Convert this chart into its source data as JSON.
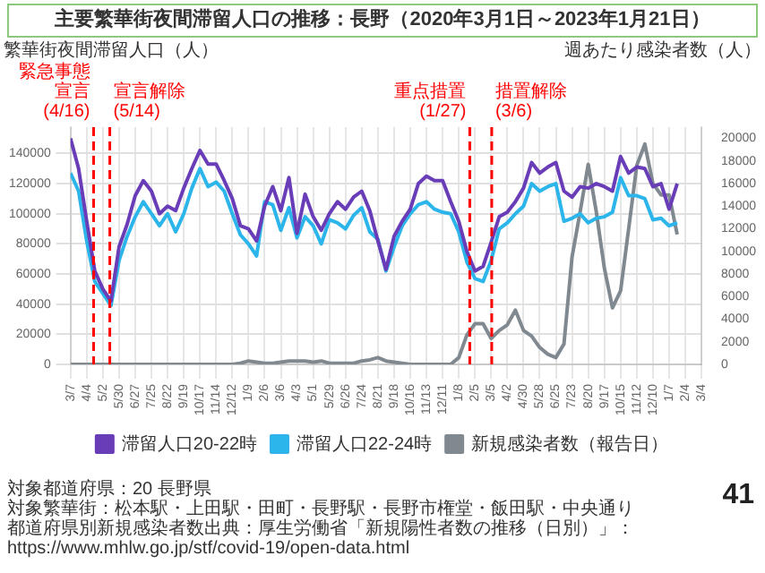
{
  "chart_data": {
    "type": "line",
    "title": "主要繁華街夜間滞留人口の推移：長野（2020年3月1日～2023年1月21日）",
    "ylabel": "繁華街夜間滞留人口（人）",
    "y2label": "週あたり感染者数（人）",
    "x": [
      "2020-03-07",
      "2020-03-21",
      "2020-04-04",
      "2020-04-18",
      "2020-05-02",
      "2020-05-16",
      "2020-05-30",
      "2020-06-13",
      "2020-06-27",
      "2020-07-11",
      "2020-07-25",
      "2020-08-08",
      "2020-08-22",
      "2020-09-05",
      "2020-09-19",
      "2020-10-03",
      "2020-10-17",
      "2020-10-31",
      "2020-11-14",
      "2020-11-28",
      "2020-12-12",
      "2020-12-26",
      "2021-01-09",
      "2021-01-23",
      "2021-02-06",
      "2021-02-20",
      "2021-03-06",
      "2021-03-20",
      "2021-04-03",
      "2021-04-17",
      "2021-05-01",
      "2021-05-15",
      "2021-05-29",
      "2021-06-12",
      "2021-06-26",
      "2021-07-10",
      "2021-07-24",
      "2021-08-07",
      "2021-08-21",
      "2021-09-04",
      "2021-09-18",
      "2021-10-02",
      "2021-10-16",
      "2021-10-30",
      "2021-11-13",
      "2021-11-27",
      "2021-12-11",
      "2021-12-25",
      "2022-01-08",
      "2022-01-22",
      "2022-02-05",
      "2022-02-19",
      "2022-03-05",
      "2022-03-19",
      "2022-04-02",
      "2022-04-16",
      "2022-04-30",
      "2022-05-14",
      "2022-05-28",
      "2022-06-11",
      "2022-06-25",
      "2022-07-09",
      "2022-07-23",
      "2022-08-06",
      "2022-08-20",
      "2022-09-03",
      "2022-09-17",
      "2022-10-01",
      "2022-10-15",
      "2022-10-29",
      "2022-11-12",
      "2022-11-26",
      "2022-12-10",
      "2022-12-24",
      "2023-01-07",
      "2023-01-21"
    ],
    "series": [
      {
        "name": "滞留人口20-22時",
        "color": "#6a3db8",
        "values": [
          150000,
          130000,
          95000,
          62000,
          50000,
          42000,
          78000,
          93000,
          112000,
          122000,
          115000,
          100000,
          105000,
          102000,
          117000,
          130000,
          142000,
          133000,
          133000,
          122000,
          110000,
          92000,
          90000,
          82000,
          105000,
          118000,
          102000,
          124000,
          87000,
          113000,
          98000,
          89000,
          100000,
          108000,
          103000,
          111000,
          115000,
          102000,
          82000,
          63000,
          85000,
          95000,
          103000,
          120000,
          125000,
          122000,
          122000,
          108000,
          95000,
          75000,
          62000,
          65000,
          81000,
          98000,
          101000,
          108000,
          117000,
          134000,
          127000,
          131000,
          134000,
          115000,
          111000,
          118000,
          117000,
          120000,
          118000,
          115000,
          138000,
          127000,
          131000,
          130000,
          118000,
          120000,
          103000,
          120000
        ]
      },
      {
        "name": "滞留人口22-24時",
        "color": "#2bb5ea",
        "values": [
          127000,
          115000,
          82000,
          55000,
          47000,
          39000,
          69000,
          85000,
          98000,
          108000,
          100000,
          92000,
          100000,
          88000,
          100000,
          117000,
          130000,
          118000,
          121000,
          115000,
          100000,
          86000,
          80000,
          72000,
          108000,
          106000,
          89000,
          104000,
          84000,
          98000,
          92000,
          80000,
          96000,
          94000,
          90000,
          99000,
          104000,
          88000,
          83000,
          62000,
          78000,
          92000,
          100000,
          106000,
          108000,
          103000,
          101000,
          100000,
          88000,
          68000,
          57000,
          55000,
          69000,
          90000,
          94000,
          100000,
          105000,
          120000,
          115000,
          118000,
          120000,
          95000,
          97000,
          100000,
          94000,
          97000,
          98000,
          101000,
          124000,
          112000,
          112000,
          110000,
          96000,
          97000,
          92000,
          94000
        ]
      },
      {
        "name": "新規感染者数（報告日）",
        "color": "#808890",
        "axis": "y2",
        "values": [
          0,
          0,
          0,
          0,
          0,
          0,
          0,
          0,
          0,
          0,
          0,
          0,
          0,
          0,
          0,
          0,
          0,
          0,
          0,
          0,
          0,
          100,
          300,
          200,
          100,
          100,
          200,
          300,
          300,
          300,
          200,
          300,
          100,
          100,
          100,
          100,
          300,
          400,
          600,
          300,
          200,
          100,
          0,
          0,
          0,
          0,
          0,
          0,
          600,
          2600,
          3600,
          3600,
          2300,
          3000,
          3500,
          4800,
          3000,
          2500,
          1500,
          900,
          600,
          1800,
          9500,
          13500,
          17700,
          13500,
          8500,
          5000,
          6500,
          12000,
          17600,
          19500,
          16000,
          15000,
          15000,
          11500
        ]
      }
    ],
    "xlim": [
      "2020-03-07",
      "2023-03-04"
    ],
    "xticks": [
      {
        "value": "2020-03-07",
        "label": "3/7"
      },
      {
        "value": "2020-04-04",
        "label": "4/4"
      },
      {
        "value": "2020-05-02",
        "label": "5/2"
      },
      {
        "value": "2020-05-30",
        "label": "5/30"
      },
      {
        "value": "2020-06-27",
        "label": "6/27"
      },
      {
        "value": "2020-07-25",
        "label": "7/25"
      },
      {
        "value": "2020-08-22",
        "label": "8/22"
      },
      {
        "value": "2020-09-19",
        "label": "9/19"
      },
      {
        "value": "2020-10-17",
        "label": "10/17"
      },
      {
        "value": "2020-11-14",
        "label": "11/14"
      },
      {
        "value": "2020-12-12",
        "label": "12/12"
      },
      {
        "value": "2021-01-09",
        "label": "1/9"
      },
      {
        "value": "2021-02-06",
        "label": "2/6"
      },
      {
        "value": "2021-03-06",
        "label": "3/6"
      },
      {
        "value": "2021-04-03",
        "label": "4/3"
      },
      {
        "value": "2021-05-01",
        "label": "5/1"
      },
      {
        "value": "2021-05-29",
        "label": "5/29"
      },
      {
        "value": "2021-06-26",
        "label": "6/26"
      },
      {
        "value": "2021-07-24",
        "label": "7/24"
      },
      {
        "value": "2021-08-21",
        "label": "8/21"
      },
      {
        "value": "2021-09-18",
        "label": "9/18"
      },
      {
        "value": "2021-10-16",
        "label": "10/16"
      },
      {
        "value": "2021-11-13",
        "label": "11/13"
      },
      {
        "value": "2021-12-11",
        "label": "12/11"
      },
      {
        "value": "2022-01-08",
        "label": "1/8"
      },
      {
        "value": "2022-02-05",
        "label": "2/5"
      },
      {
        "value": "2022-03-05",
        "label": "3/5"
      },
      {
        "value": "2022-04-02",
        "label": "4/2"
      },
      {
        "value": "2022-04-30",
        "label": "4/30"
      },
      {
        "value": "2022-05-28",
        "label": "5/28"
      },
      {
        "value": "2022-06-25",
        "label": "6/25"
      },
      {
        "value": "2022-07-23",
        "label": "7/23"
      },
      {
        "value": "2022-08-20",
        "label": "8/20"
      },
      {
        "value": "2022-09-17",
        "label": "9/17"
      },
      {
        "value": "2022-10-15",
        "label": "10/15"
      },
      {
        "value": "2022-11-12",
        "label": "11/12"
      },
      {
        "value": "2022-12-10",
        "label": "12/10"
      },
      {
        "value": "2023-01-07",
        "label": "1/7"
      },
      {
        "value": "2023-02-04",
        "label": "2/4"
      },
      {
        "value": "2023-03-04",
        "label": "3/4"
      }
    ],
    "ylim": [
      0,
      157500
    ],
    "yticks": [
      0,
      20000,
      40000,
      60000,
      80000,
      100000,
      120000,
      140000
    ],
    "y2lim": [
      0,
      21000
    ],
    "y2ticks": [
      0,
      2000,
      4000,
      6000,
      8000,
      10000,
      12000,
      14000,
      16000,
      18000,
      20000
    ],
    "ref_lines": [
      {
        "axis": "x",
        "value": "2020-04-16",
        "label": "緊急事態宣言 (4/16)",
        "color": "#ff0000",
        "line_style": "dashed"
      },
      {
        "axis": "x",
        "value": "2020-05-14",
        "label": "宣言解除 (5/14)",
        "color": "#ff0000",
        "line_style": "dashed"
      },
      {
        "axis": "x",
        "value": "2022-01-27",
        "label": "重点措置 (1/27)",
        "color": "#ff0000",
        "line_style": "dashed"
      },
      {
        "axis": "x",
        "value": "2022-03-06",
        "label": "措置解除 (3/6)",
        "color": "#ff0000",
        "line_style": "dashed"
      }
    ],
    "annotations": [
      "対象都道府県：20 長野県",
      "対象繁華街：松本駅・上田駅・田町・長野駅・長野市権堂・飯田駅・中央通り",
      "都道府県別新規感染者数出典：厚生労働省「新規陽性者数の推移（日別）」：https://www.mhlw.go.jp/stf/covid-19/open-data.html",
      "41"
    ],
    "grid": true,
    "legend": "bottom",
    "marker": "none"
  }
}
